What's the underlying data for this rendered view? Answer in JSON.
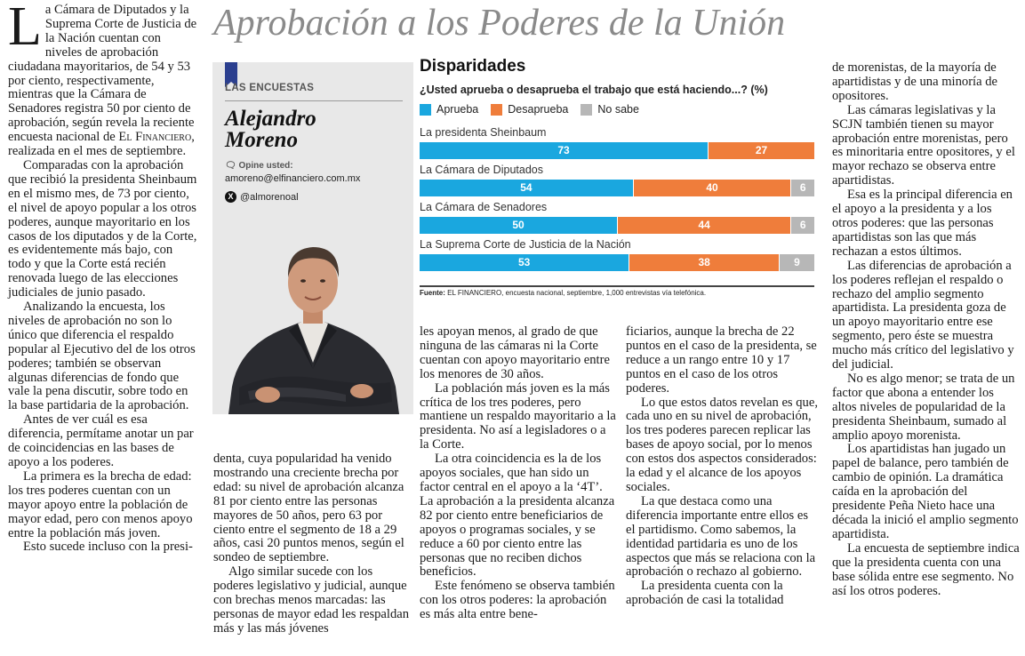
{
  "headline": "Aprobación a los Poderes de la Unión",
  "author": {
    "section_tag": "LAS ENCUESTAS",
    "name_line1": "Alejandro",
    "name_line2": "Moreno",
    "opine_label": "Opine usted:",
    "email": "amoreno@elfinanciero.com.mx",
    "twitter": "@almorenoal"
  },
  "colors": {
    "aprueba": "#1aa7df",
    "desaprueba": "#ef7d3b",
    "nosabe": "#b7b7b7"
  },
  "chart_data": {
    "type": "bar",
    "orientation": "horizontal-stacked",
    "title": "Disparidades",
    "question": "¿Usted aprueba o desaprueba el trabajo que está haciendo...? (%)",
    "legend": [
      "Aprueba",
      "Desaprueba",
      "No sabe"
    ],
    "categories": [
      "La presidenta Sheinbaum",
      "La Cámara de Diputados",
      "La Cámara de Senadores",
      "La Suprema Corte de Justicia de la Nación"
    ],
    "series": [
      {
        "name": "Aprueba",
        "values": [
          73,
          54,
          50,
          53
        ]
      },
      {
        "name": "Desaprueba",
        "values": [
          27,
          40,
          44,
          38
        ]
      },
      {
        "name": "No sabe",
        "values": [
          0,
          6,
          6,
          9
        ]
      }
    ],
    "xlim": [
      0,
      100
    ],
    "source_label": "Fuente:",
    "source_text": "EL FINANCIERO, encuesta nacional, septiembre, 1,000 entrevistas vía telefónica."
  },
  "columns": {
    "col1": {
      "dropcap": "L",
      "first_para": "a Cámara de Diputados y la Suprema Corte de Justicia de la Nación cuentan con niveles de aprobación ciudadana mayoritarios, de 54 y 53 por ciento, respectivamente, mientras que la Cámara de Senadores registra 50 por ciento de aprobación, según revela la reciente encuesta nacional de",
      "brand": "El Financiero",
      "first_para_end": ", realizada en el mes de septiembre.",
      "paras": [
        "Comparadas con la aprobación que recibió la presidenta Sheinbaum en el mismo mes, de 73 por ciento, el nivel de apoyo popular a los otros poderes, aunque mayoritario en los casos de los diputados y de la Corte, es evidentemente más bajo, con todo y que la Corte está recién renovada luego de las elecciones judiciales de junio pasado.",
        "Analizando la encuesta, los niveles de aprobación no son lo único que diferencia el respaldo popular al Ejecutivo del de los otros poderes; también se observan algunas diferencias de fondo que vale la pena discutir, sobre todo en la base partidaria de la aprobación.",
        "Antes de ver cuál es esa diferencia, permítame anotar un par de coincidencias en las bases de apoyo a los poderes.",
        "La primera es la brecha de edad: los tres poderes cuentan con un mayor apoyo entre la población de mayor edad, pero con menos apoyo entre la población más joven.",
        "Esto sucede incluso con la presi-"
      ]
    },
    "col2": {
      "paras": [
        "denta, cuya popularidad ha venido mostrando una creciente brecha por edad: su nivel de aprobación alcanza 81 por ciento entre las personas mayores de 50 años, pero 63 por ciento entre el segmento de 18 a 29 años, casi 20 puntos menos, según el sondeo de septiembre.",
        "Algo similar sucede con los poderes legislativo y judicial, aunque con brechas menos marcadas: las personas de mayor edad les respaldan más y las más jóvenes"
      ]
    },
    "col3": {
      "paras": [
        "les apoyan menos, al grado de que ninguna de las cámaras ni la Corte cuentan con apoyo mayoritario entre los menores de 30 años.",
        "La población más joven es la más crítica de los tres poderes, pero mantiene un respaldo mayoritario a la presidenta. No así a legisladores o a la Corte.",
        "La otra coincidencia es la de los apoyos sociales, que han sido un factor central en el apoyo a la ‘4T’. La aprobación a la presidenta alcanza 82 por ciento entre beneficiarios de apoyos o programas sociales, y se reduce a 60 por ciento entre las personas que no reciben dichos beneficios.",
        "Este fenómeno se observa también con los otros poderes: la aprobación es más alta entre bene-"
      ]
    },
    "col4": {
      "paras": [
        "ficiarios, aunque la brecha de 22 puntos en el caso de la presidenta, se reduce a un rango entre 10 y 17 puntos en el caso de los otros poderes.",
        "Lo que estos datos revelan es que, cada uno en su nivel de aprobación, los tres poderes parecen replicar las bases de apoyo social, por lo menos con estos dos aspectos considerados: la edad y el alcance de los apoyos sociales.",
        "La que destaca como una diferencia importante entre ellos es el partidismo. Como sabemos, la identidad partidaria es uno de los aspectos que más se relaciona con la aprobación o rechazo al gobierno.",
        "La presidenta cuenta con la aprobación de casi la totalidad"
      ]
    },
    "col5": {
      "paras": [
        "de morenistas, de la mayoría de apartidistas y de una minoría de opositores.",
        "Las cámaras legislativas y la SCJN también tienen su mayor aprobación entre morenistas, pero es minoritaria entre opositores, y el mayor rechazo se observa entre apartidistas.",
        "Esa es la principal diferencia en el apoyo a la presidenta y a los otros poderes: que las personas apartidistas son las que más rechazan a estos últimos.",
        "Las diferencias de aprobación a los poderes reflejan el respaldo o rechazo del amplio segmento apartidista. La presidenta goza de un apoyo mayoritario entre ese segmento, pero éste se muestra mucho más crítico del legislativo y del judicial.",
        "No es algo menor; se trata de un factor que abona a entender los altos niveles de popularidad de la presidenta Sheinbaum, sumado al amplio apoyo morenista.",
        "Los apartidistas han jugado un papel de balance, pero también de cambio de opinión. La dramática caída en la aprobación del presidente Peña Nieto hace una década la inició el amplio segmento apartidista.",
        "La encuesta de septiembre indica que la presidenta cuenta con una base sólida entre ese segmento. No así los otros poderes."
      ]
    }
  }
}
